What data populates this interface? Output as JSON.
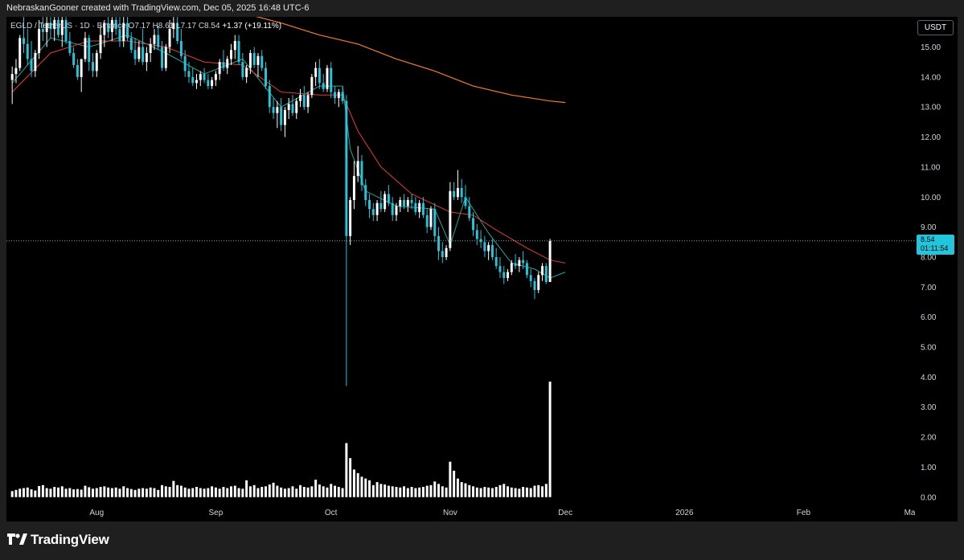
{
  "header": {
    "text": "NebraskanGooner created with TradingView.com, Dec 05, 2025 16:48 UTC-6"
  },
  "legend": {
    "symbol_text": "EGLD / TetherUS · 1D · Binance",
    "ohlc_text": "O7.17 H8.61 L7.17 C8.54",
    "change_text": "+1.37 (+19.11%)"
  },
  "currency": "USDT",
  "last_price": {
    "value": "8.54",
    "countdown": "01:11:54"
  },
  "footer": {
    "brand": "TradingView"
  },
  "colors": {
    "background": "#000000",
    "candle_up": "#ffffff",
    "candle_down": "#22c5da",
    "ma_fast": "#26a69a",
    "ma_slow": "#e53935",
    "ma_long": "#f57c28",
    "price_line": "#4fb3c9",
    "volume": "#ffffff"
  },
  "chart_data": {
    "type": "candlestick",
    "y_axis": {
      "min": 0,
      "max": 15.5,
      "ticks": [
        "0.00",
        "1.00",
        "2.00",
        "3.00",
        "4.00",
        "5.00",
        "6.00",
        "7.00",
        "8.00",
        "9.00",
        "10.00",
        "11.00",
        "12.00",
        "13.00",
        "14.00",
        "15.00"
      ]
    },
    "x_axis": {
      "labels": [
        {
          "label": "Aug",
          "day": 22
        },
        {
          "label": "Sep",
          "day": 53
        },
        {
          "label": "Oct",
          "day": 83
        },
        {
          "label": "Nov",
          "day": 114
        },
        {
          "label": "Dec",
          "day": 144
        },
        {
          "label": "2026",
          "day": 175
        },
        {
          "label": "Feb",
          "day": 206
        },
        {
          "label": "Mar",
          "day": 234
        }
      ],
      "range_days": [
        -1.5,
        235
      ]
    },
    "price_candles": [
      [
        13.9,
        14.35,
        13.1,
        14.1
      ],
      [
        14.1,
        14.6,
        13.8,
        14.3
      ],
      [
        14.3,
        15.4,
        14.2,
        15.3
      ],
      [
        15.3,
        16.0,
        14.8,
        15.1
      ],
      [
        15.1,
        15.6,
        14.4,
        14.6
      ],
      [
        14.6,
        15.2,
        14.0,
        14.2
      ],
      [
        14.2,
        14.9,
        14.0,
        14.8
      ],
      [
        14.8,
        15.9,
        14.6,
        15.6
      ],
      [
        15.6,
        16.0,
        15.2,
        15.5
      ],
      [
        15.5,
        16.0,
        15.0,
        15.8
      ],
      [
        15.8,
        16.0,
        15.3,
        15.6
      ],
      [
        15.6,
        16.0,
        15.2,
        15.9
      ],
      [
        15.9,
        16.0,
        15.3,
        15.4
      ],
      [
        15.4,
        16.0,
        15.0,
        15.9
      ],
      [
        15.9,
        16.0,
        15.1,
        15.2
      ],
      [
        15.2,
        15.5,
        14.7,
        14.8
      ],
      [
        14.8,
        15.0,
        14.3,
        14.4
      ],
      [
        14.4,
        14.6,
        13.9,
        14.0
      ],
      [
        14.0,
        14.2,
        13.5,
        14.6
      ],
      [
        14.6,
        15.5,
        14.5,
        15.3
      ],
      [
        15.3,
        15.4,
        14.2,
        14.5
      ],
      [
        14.5,
        14.8,
        14.0,
        14.2
      ],
      [
        14.2,
        14.9,
        14.0,
        14.8
      ],
      [
        14.8,
        15.7,
        14.6,
        15.4
      ],
      [
        15.4,
        15.9,
        15.0,
        15.8
      ],
      [
        15.8,
        16.0,
        15.3,
        15.5
      ],
      [
        15.5,
        16.0,
        15.2,
        15.9
      ],
      [
        15.9,
        16.0,
        15.4,
        15.6
      ],
      [
        15.6,
        16.0,
        15.0,
        15.2
      ],
      [
        15.2,
        16.0,
        15.0,
        15.8
      ],
      [
        15.8,
        16.0,
        15.2,
        15.3
      ],
      [
        15.3,
        15.5,
        14.8,
        14.9
      ],
      [
        14.9,
        15.3,
        14.4,
        14.6
      ],
      [
        14.6,
        15.2,
        14.5,
        15.0
      ],
      [
        15.0,
        15.6,
        14.4,
        14.5
      ],
      [
        14.5,
        15.0,
        14.2,
        14.8
      ],
      [
        14.8,
        15.3,
        14.5,
        15.1
      ],
      [
        15.1,
        15.6,
        14.9,
        15.4
      ],
      [
        15.4,
        15.7,
        14.9,
        15.0
      ],
      [
        15.0,
        15.2,
        14.2,
        14.3
      ],
      [
        14.3,
        15.1,
        14.2,
        15.0
      ],
      [
        15.0,
        15.9,
        14.8,
        15.6
      ],
      [
        15.6,
        16.0,
        15.3,
        15.8
      ],
      [
        15.8,
        16.0,
        15.1,
        15.2
      ],
      [
        15.2,
        15.6,
        14.6,
        14.7
      ],
      [
        14.7,
        14.9,
        14.0,
        14.2
      ],
      [
        14.2,
        14.5,
        13.8,
        14.0
      ],
      [
        14.0,
        14.3,
        13.7,
        13.8
      ],
      [
        13.8,
        14.1,
        13.6,
        13.9
      ],
      [
        13.9,
        14.2,
        13.7,
        14.1
      ],
      [
        14.1,
        14.3,
        13.8,
        13.9
      ],
      [
        13.9,
        14.1,
        13.6,
        13.7
      ],
      [
        13.7,
        14.0,
        13.6,
        13.9
      ],
      [
        13.9,
        14.2,
        13.7,
        14.1
      ],
      [
        14.1,
        14.6,
        13.9,
        14.5
      ],
      [
        14.5,
        14.9,
        14.2,
        14.3
      ],
      [
        14.3,
        14.7,
        14.1,
        14.6
      ],
      [
        14.6,
        15.1,
        14.4,
        14.9
      ],
      [
        14.9,
        15.4,
        14.6,
        15.2
      ],
      [
        15.2,
        15.4,
        14.4,
        14.5
      ],
      [
        14.5,
        14.8,
        13.9,
        14.0
      ],
      [
        14.0,
        14.4,
        13.8,
        14.3
      ],
      [
        14.3,
        14.9,
        14.1,
        14.8
      ],
      [
        14.8,
        15.0,
        14.3,
        14.4
      ],
      [
        14.4,
        14.8,
        14.0,
        14.7
      ],
      [
        14.7,
        14.9,
        14.2,
        14.3
      ],
      [
        14.3,
        14.5,
        13.6,
        13.7
      ],
      [
        13.7,
        13.9,
        12.8,
        13.0
      ],
      [
        13.0,
        13.3,
        12.6,
        12.8
      ],
      [
        12.8,
        13.2,
        12.3,
        13.0
      ],
      [
        13.0,
        13.3,
        12.2,
        12.4
      ],
      [
        12.4,
        13.0,
        12.0,
        12.9
      ],
      [
        12.9,
        13.3,
        12.6,
        13.1
      ],
      [
        13.1,
        13.4,
        12.7,
        12.8
      ],
      [
        12.8,
        13.3,
        12.6,
        13.2
      ],
      [
        13.2,
        13.6,
        13.0,
        13.4
      ],
      [
        13.4,
        13.7,
        12.9,
        13.0
      ],
      [
        13.0,
        13.5,
        12.8,
        13.4
      ],
      [
        13.4,
        14.1,
        13.3,
        14.0
      ],
      [
        14.0,
        14.5,
        13.7,
        14.3
      ],
      [
        14.3,
        14.6,
        13.6,
        13.8
      ],
      [
        13.8,
        14.1,
        13.5,
        13.6
      ],
      [
        13.6,
        14.4,
        13.5,
        14.3
      ],
      [
        14.3,
        14.5,
        13.3,
        13.5
      ],
      [
        13.5,
        13.7,
        13.1,
        13.3
      ],
      [
        13.3,
        13.6,
        13.0,
        13.5
      ],
      [
        13.5,
        13.7,
        13.1,
        13.2
      ],
      [
        13.2,
        13.4,
        3.7,
        8.7
      ],
      [
        8.7,
        10.0,
        8.4,
        9.9
      ],
      [
        9.9,
        11.2,
        9.6,
        10.7
      ],
      [
        10.7,
        11.7,
        10.5,
        11.2
      ],
      [
        11.2,
        11.4,
        10.2,
        10.4
      ],
      [
        10.4,
        10.6,
        9.7,
        9.9
      ],
      [
        9.9,
        10.1,
        9.3,
        9.6
      ],
      [
        9.6,
        9.8,
        9.2,
        9.4
      ],
      [
        9.4,
        9.9,
        9.2,
        9.8
      ],
      [
        9.8,
        10.2,
        9.5,
        9.6
      ],
      [
        9.6,
        10.2,
        9.5,
        10.1
      ],
      [
        10.1,
        10.4,
        9.7,
        9.8
      ],
      [
        9.8,
        10.0,
        9.2,
        9.4
      ],
      [
        9.4,
        9.8,
        9.2,
        9.7
      ],
      [
        9.7,
        10.0,
        9.5,
        9.9
      ],
      [
        9.9,
        10.1,
        9.6,
        9.7
      ],
      [
        9.7,
        10.0,
        9.5,
        9.9
      ],
      [
        9.9,
        10.1,
        9.6,
        9.8
      ],
      [
        9.8,
        10.0,
        9.4,
        9.5
      ],
      [
        9.5,
        9.9,
        9.3,
        9.8
      ],
      [
        9.8,
        10.0,
        9.3,
        9.4
      ],
      [
        9.4,
        9.6,
        8.8,
        9.0
      ],
      [
        9.0,
        9.7,
        8.9,
        9.6
      ],
      [
        9.6,
        9.8,
        8.5,
        8.7
      ],
      [
        8.7,
        9.0,
        7.9,
        8.2
      ],
      [
        8.2,
        8.5,
        7.8,
        8.0
      ],
      [
        8.0,
        8.4,
        7.9,
        8.3
      ],
      [
        8.3,
        10.5,
        8.2,
        10.2
      ],
      [
        10.2,
        10.5,
        9.9,
        10.0
      ],
      [
        10.0,
        10.9,
        9.9,
        10.3
      ],
      [
        10.3,
        10.6,
        9.8,
        10.0
      ],
      [
        10.0,
        10.4,
        9.6,
        9.7
      ],
      [
        9.7,
        10.0,
        9.2,
        9.3
      ],
      [
        9.3,
        9.5,
        8.7,
        8.9
      ],
      [
        8.9,
        9.1,
        8.4,
        8.6
      ],
      [
        8.6,
        8.9,
        8.3,
        8.5
      ],
      [
        8.5,
        8.7,
        8.0,
        8.2
      ],
      [
        8.2,
        8.5,
        7.9,
        8.4
      ],
      [
        8.4,
        8.6,
        7.9,
        8.0
      ],
      [
        8.0,
        8.3,
        7.6,
        7.7
      ],
      [
        7.7,
        8.0,
        7.3,
        7.5
      ],
      [
        7.5,
        7.7,
        7.1,
        7.3
      ],
      [
        7.3,
        7.6,
        7.2,
        7.5
      ],
      [
        7.5,
        7.9,
        7.4,
        7.8
      ],
      [
        7.8,
        8.1,
        7.6,
        7.7
      ],
      [
        7.7,
        8.0,
        7.5,
        7.9
      ],
      [
        7.9,
        8.2,
        7.6,
        7.8
      ],
      [
        7.8,
        7.9,
        7.3,
        7.4
      ],
      [
        7.4,
        7.6,
        7.0,
        7.2
      ],
      [
        7.2,
        7.3,
        6.6,
        6.9
      ],
      [
        6.9,
        7.5,
        6.8,
        7.4
      ],
      [
        7.4,
        7.8,
        7.2,
        7.7
      ],
      [
        7.7,
        7.8,
        7.1,
        7.17
      ],
      [
        7.17,
        8.61,
        7.17,
        8.54
      ]
    ],
    "volume": [
      0.2,
      0.24,
      0.28,
      0.3,
      0.32,
      0.26,
      0.22,
      0.37,
      0.4,
      0.3,
      0.28,
      0.34,
      0.32,
      0.36,
      0.28,
      0.3,
      0.26,
      0.27,
      0.25,
      0.38,
      0.33,
      0.28,
      0.3,
      0.34,
      0.36,
      0.32,
      0.3,
      0.32,
      0.28,
      0.36,
      0.3,
      0.27,
      0.24,
      0.28,
      0.3,
      0.28,
      0.32,
      0.3,
      0.24,
      0.4,
      0.36,
      0.34,
      0.54,
      0.4,
      0.38,
      0.32,
      0.28,
      0.3,
      0.34,
      0.3,
      0.28,
      0.3,
      0.36,
      0.32,
      0.28,
      0.34,
      0.3,
      0.36,
      0.38,
      0.3,
      0.28,
      0.56,
      0.36,
      0.4,
      0.3,
      0.34,
      0.36,
      0.42,
      0.48,
      0.38,
      0.32,
      0.28,
      0.3,
      0.36,
      0.28,
      0.4,
      0.34,
      0.32,
      0.36,
      0.58,
      0.42,
      0.36,
      0.32,
      0.44,
      0.38,
      0.34,
      0.3,
      1.8,
      1.3,
      0.92,
      0.8,
      0.68,
      0.62,
      0.56,
      0.4,
      0.5,
      0.44,
      0.42,
      0.38,
      0.36,
      0.34,
      0.32,
      0.36,
      0.3,
      0.34,
      0.3,
      0.32,
      0.34,
      0.38,
      0.4,
      0.52,
      0.44,
      0.36,
      0.32,
      1.18,
      0.88,
      0.62,
      0.5,
      0.46,
      0.4,
      0.36,
      0.32,
      0.3,
      0.34,
      0.32,
      0.3,
      0.34,
      0.4,
      0.44,
      0.36,
      0.32,
      0.3,
      0.28,
      0.34,
      0.32,
      0.3,
      0.38,
      0.4,
      0.36,
      0.44,
      3.85
    ],
    "ma_fast": [
      [
        0,
        13.8
      ],
      [
        10,
        15.3
      ],
      [
        20,
        15.0
      ],
      [
        30,
        15.4
      ],
      [
        40,
        14.8
      ],
      [
        50,
        14.1
      ],
      [
        60,
        14.6
      ],
      [
        70,
        13.0
      ],
      [
        80,
        13.7
      ],
      [
        86,
        13.7
      ],
      [
        88,
        11.6
      ],
      [
        92,
        10.2
      ],
      [
        100,
        9.7
      ],
      [
        110,
        9.6
      ],
      [
        114,
        8.4
      ],
      [
        118,
        10.0
      ],
      [
        124,
        8.8
      ],
      [
        130,
        7.8
      ],
      [
        136,
        7.6
      ],
      [
        140,
        7.3
      ],
      [
        144,
        7.5
      ]
    ],
    "ma_slow": [
      [
        0,
        13.5
      ],
      [
        10,
        14.8
      ],
      [
        20,
        15.2
      ],
      [
        30,
        15.2
      ],
      [
        40,
        15.0
      ],
      [
        50,
        14.5
      ],
      [
        60,
        14.4
      ],
      [
        70,
        13.5
      ],
      [
        80,
        13.4
      ],
      [
        86,
        13.4
      ],
      [
        90,
        12.2
      ],
      [
        96,
        11.0
      ],
      [
        104,
        10.1
      ],
      [
        114,
        9.5
      ],
      [
        120,
        9.4
      ],
      [
        126,
        8.9
      ],
      [
        134,
        8.3
      ],
      [
        140,
        7.9
      ],
      [
        144,
        7.8
      ]
    ],
    "ma_long": [
      [
        58,
        16.2
      ],
      [
        70,
        15.8
      ],
      [
        80,
        15.4
      ],
      [
        90,
        15.1
      ],
      [
        100,
        14.6
      ],
      [
        110,
        14.2
      ],
      [
        120,
        13.7
      ],
      [
        130,
        13.4
      ],
      [
        140,
        13.2
      ],
      [
        144,
        13.15
      ]
    ],
    "last_price_line": 8.54
  }
}
